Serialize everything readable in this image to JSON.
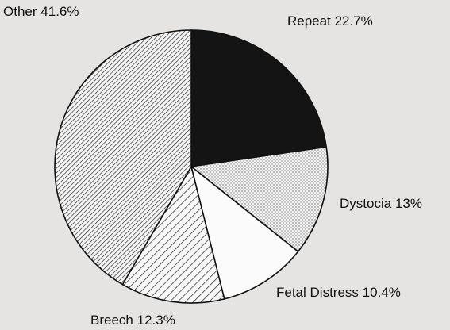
{
  "chart_data": {
    "type": "pie",
    "categories": [
      "Repeat",
      "Dystocia",
      "Fetal Distress",
      "Breech",
      "Other"
    ],
    "values": [
      22.7,
      13,
      10.4,
      12.3,
      41.6
    ],
    "value_labels": [
      "22.7%",
      "13%",
      "10.4%",
      "12.3%",
      "41.6%"
    ]
  }
}
